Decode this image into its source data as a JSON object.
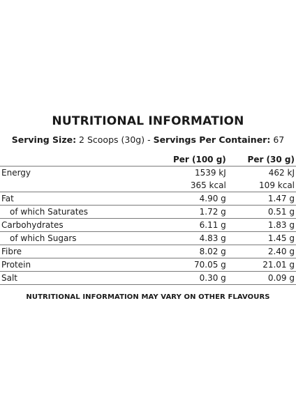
{
  "title": "NUTRITIONAL INFORMATION",
  "serving": {
    "size_label": "Serving Size:",
    "size_value": " 2 Scoops (30g) - ",
    "per_container_label": "Servings Per Container:",
    "per_container_value": " 67"
  },
  "table": {
    "headers": [
      "",
      "Per (100 g)",
      "Per (30 g)"
    ],
    "rows": [
      {
        "label": "Energy",
        "per100": "1539 kJ",
        "per30": "462 kJ"
      },
      {
        "label": "",
        "per100": "365 kcal",
        "per30": "109 kcal"
      },
      {
        "label": "Fat",
        "per100": "4.90 g",
        "per30": "1.47 g"
      },
      {
        "label": "of which Saturates",
        "per100": "1.72 g",
        "per30": "0.51 g"
      },
      {
        "label": "Carbohydrates",
        "per100": "6.11 g",
        "per30": "1.83 g"
      },
      {
        "label": "of which Sugars",
        "per100": "4.83 g",
        "per30": "1.45 g"
      },
      {
        "label": "Fibre",
        "per100": "8.02 g",
        "per30": "2.40 g"
      },
      {
        "label": "Protein",
        "per100": "70.05 g",
        "per30": "21.01 g"
      },
      {
        "label": "Salt",
        "per100": "0.30 g",
        "per30": "0.09 g"
      }
    ]
  },
  "footer": "NUTRITIONAL INFORMATION MAY VARY ON OTHER FLAVOURS"
}
